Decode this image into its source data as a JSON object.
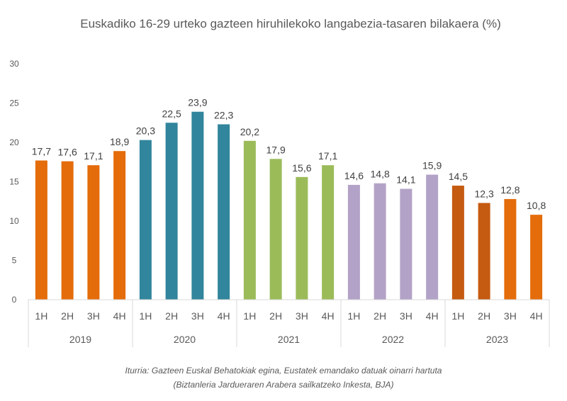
{
  "chart_data": {
    "type": "bar",
    "title": "Euskadiko 16-29 urteko gazteen hiruhilekoko langabezia-tasaren bilakaera (%)",
    "xlabel": "",
    "ylabel": "",
    "ylim": [
      0,
      30
    ],
    "yticks": [
      0,
      5,
      10,
      15,
      20,
      25,
      30
    ],
    "grid": false,
    "legend": "none",
    "groups": [
      {
        "label": "2019",
        "categories": [
          "1H",
          "2H",
          "3H",
          "4H"
        ],
        "values": [
          17.7,
          17.6,
          17.1,
          18.9
        ],
        "value_labels": [
          "17,7",
          "17,6",
          "17,1",
          "18,9"
        ],
        "colors": [
          "#E46C0A",
          "#E46C0A",
          "#E46C0A",
          "#E46C0A"
        ]
      },
      {
        "label": "2020",
        "categories": [
          "1H",
          "2H",
          "3H",
          "4H"
        ],
        "values": [
          20.3,
          22.5,
          23.9,
          22.3
        ],
        "value_labels": [
          "20,3",
          "22,5",
          "23,9",
          "22,3"
        ],
        "colors": [
          "#31859C",
          "#31859C",
          "#31859C",
          "#31859C"
        ]
      },
      {
        "label": "2021",
        "categories": [
          "1H",
          "2H",
          "3H",
          "4H"
        ],
        "values": [
          20.2,
          17.9,
          15.6,
          17.1
        ],
        "value_labels": [
          "20,2",
          "17,9",
          "15,6",
          "17,1"
        ],
        "colors": [
          "#9BBB59",
          "#9BBB59",
          "#9BBB59",
          "#9BBB59"
        ]
      },
      {
        "label": "2022",
        "categories": [
          "1H",
          "2H",
          "3H",
          "4H"
        ],
        "values": [
          14.6,
          14.8,
          14.1,
          15.9
        ],
        "value_labels": [
          "14,6",
          "14,8",
          "14,1",
          "15,9"
        ],
        "colors": [
          "#B3A2C7",
          "#B3A2C7",
          "#B3A2C7",
          "#B3A2C7"
        ]
      },
      {
        "label": "2023",
        "categories": [
          "1H",
          "2H",
          "3H",
          "4H"
        ],
        "values": [
          14.5,
          12.3,
          12.8,
          10.8
        ],
        "value_labels": [
          "14,5",
          "12,3",
          "12,8",
          "10,8"
        ],
        "colors": [
          "#C55A11",
          "#C55A11",
          "#E46C0A",
          "#E46C0A"
        ]
      }
    ]
  },
  "source": {
    "line1": "Iturria: Gazteen Euskal Behatokiak egina, Eustatek emandako datuak oinarri hartuta",
    "line2": "(Biztanleria Jardueraren Arabera sailkatzeko Inkesta, BJA)"
  }
}
